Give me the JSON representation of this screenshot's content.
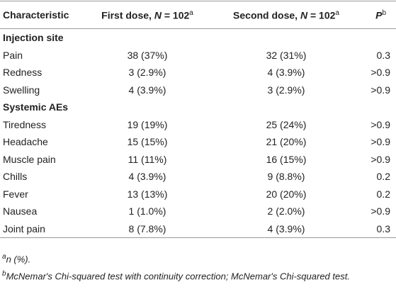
{
  "table": {
    "header": [
      {
        "text": "Characteristic"
      },
      {
        "text": "First dose, ",
        "italic": "N",
        "rest": " = 102",
        "sup": "a"
      },
      {
        "text": "Second dose, ",
        "italic": "N",
        "rest": " = 102",
        "sup": "a"
      },
      {
        "italic": "P",
        "sup": "b"
      }
    ],
    "sections": [
      {
        "title": "Injection site",
        "rows": [
          [
            "Pain",
            "38 (37%)",
            "32 (31%)",
            "0.3"
          ],
          [
            "Redness",
            "3 (2.9%)",
            "4 (3.9%)",
            ">0.9"
          ],
          [
            "Swelling",
            "4 (3.9%)",
            "3 (2.9%)",
            ">0.9"
          ]
        ]
      },
      {
        "title": "Systemic AEs",
        "rows": [
          [
            "Tiredness",
            "19 (19%)",
            "25 (24%)",
            ">0.9"
          ],
          [
            "Headache",
            "15 (15%)",
            "21 (20%)",
            ">0.9"
          ],
          [
            "Muscle pain",
            "11 (11%)",
            "16 (15%)",
            ">0.9"
          ],
          [
            "Chills",
            "4 (3.9%)",
            "9 (8.8%)",
            "0.2"
          ],
          [
            "Fever",
            "13 (13%)",
            "20 (20%)",
            "0.2"
          ],
          [
            "Nausea",
            "1 (1.0%)",
            "2 (2.0%)",
            ">0.9"
          ],
          [
            "Joint pain",
            "8 (7.8%)",
            "4 (3.9%)",
            "0.3"
          ]
        ]
      }
    ]
  },
  "footnotes": [
    {
      "sup": "a",
      "text": "n (%)."
    },
    {
      "sup": "b",
      "text": "McNemar's Chi-squared test with continuity correction; McNemar's Chi-squared test."
    }
  ]
}
